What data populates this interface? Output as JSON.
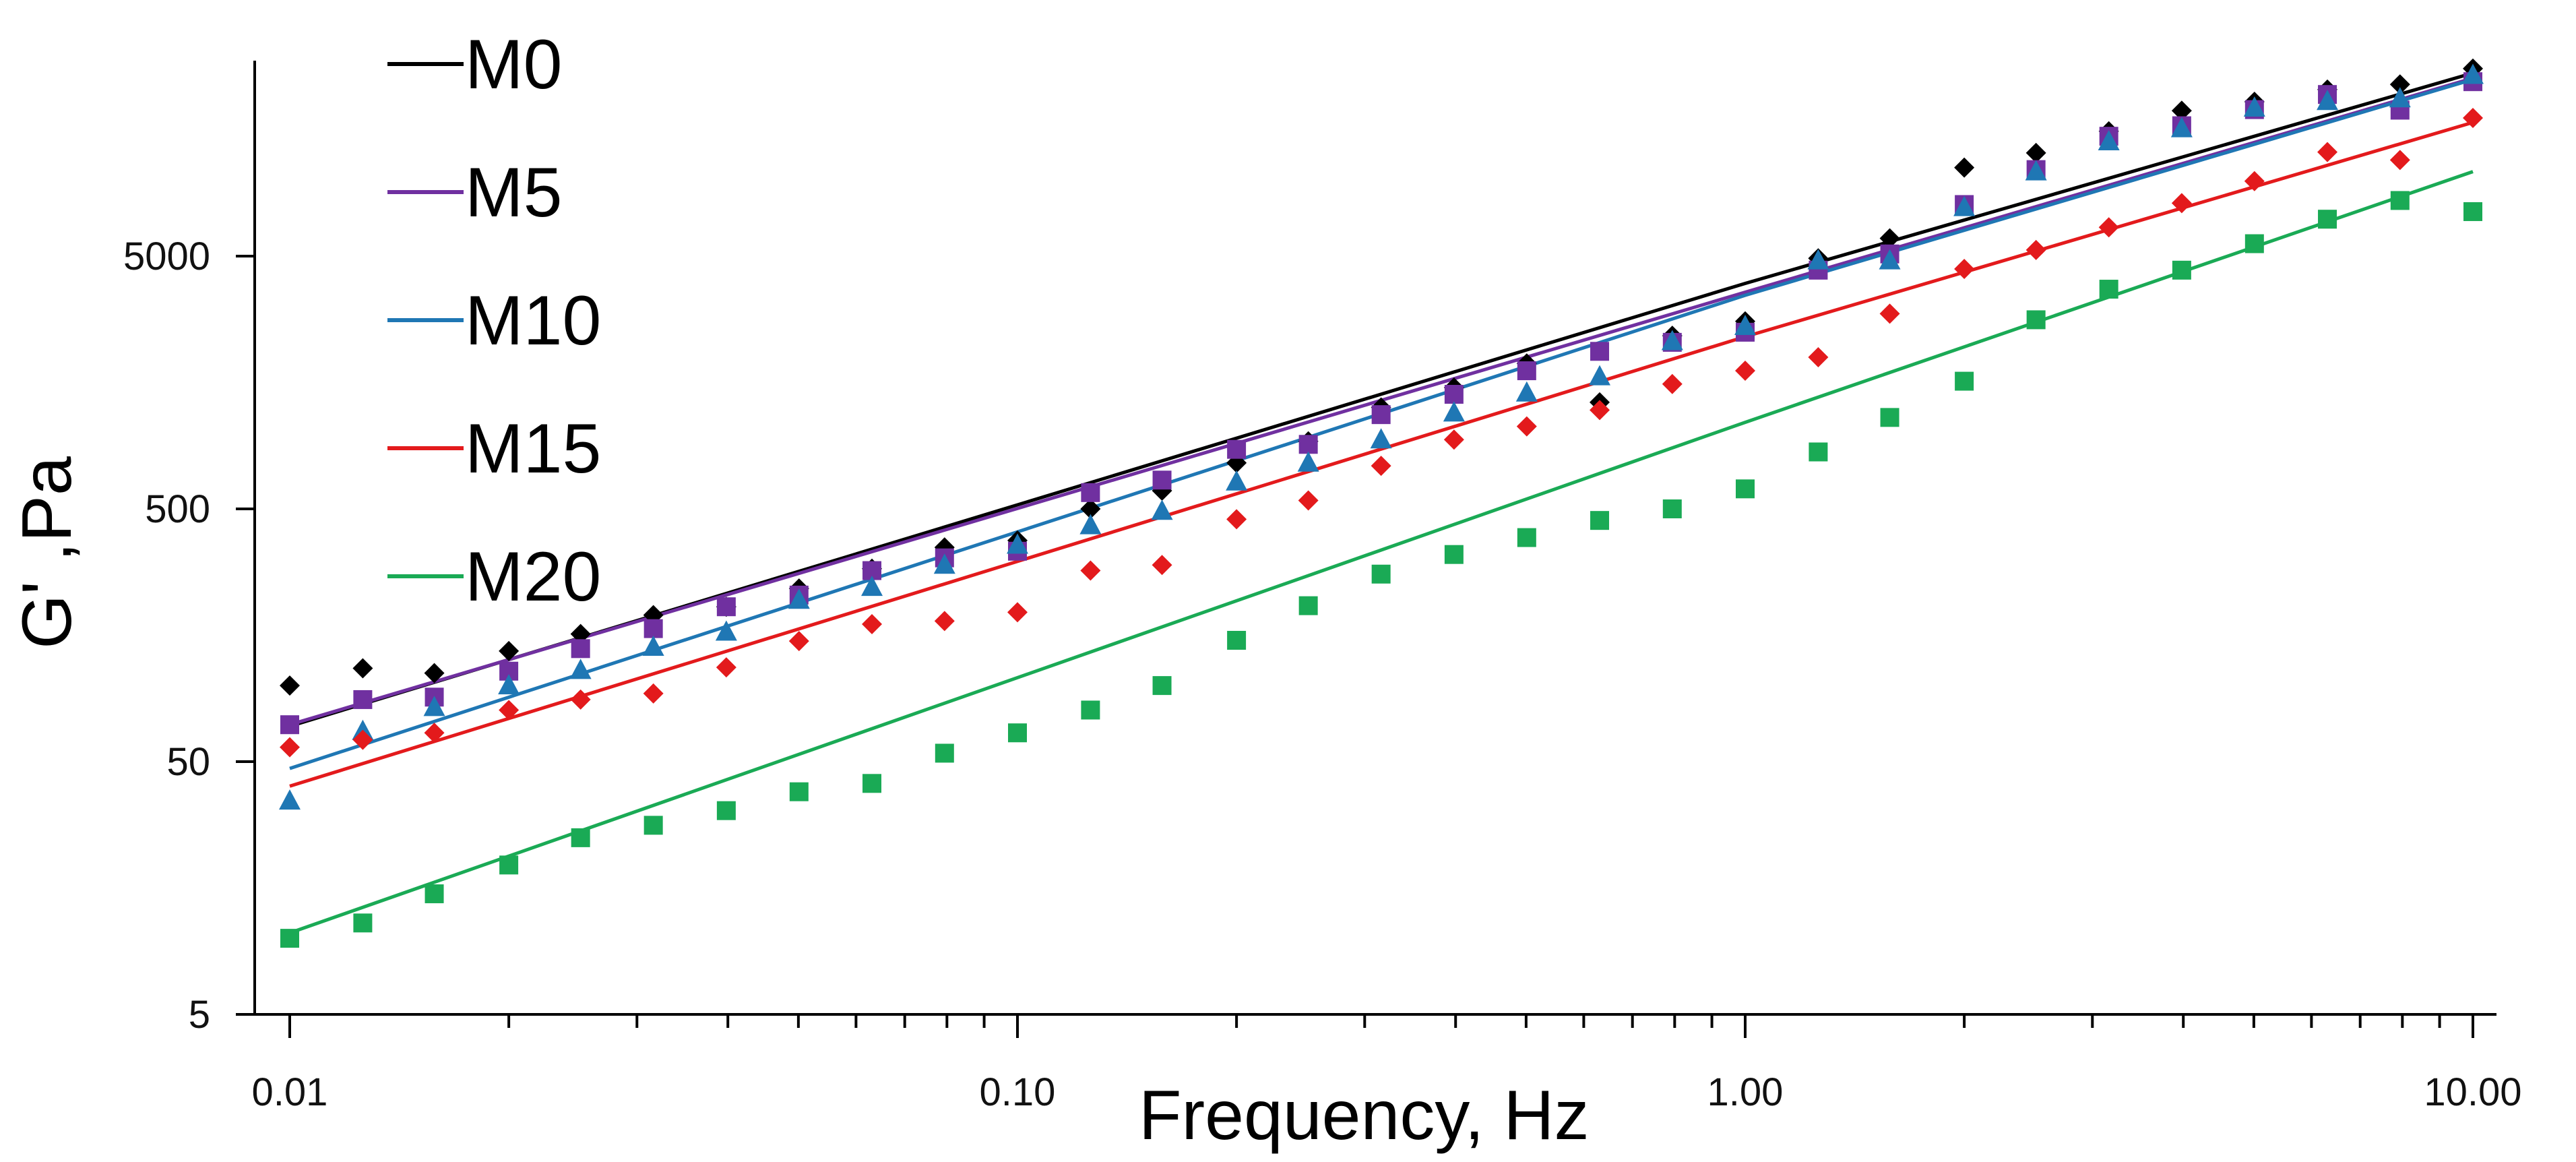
{
  "chart_data": {
    "type": "scatter",
    "title": "",
    "xlabel": "Frequency, Hz",
    "ylabel": "G' ,Pa",
    "xscale": "log",
    "yscale": "log",
    "xlim": [
      0.01,
      10
    ],
    "ylim": [
      5,
      30000
    ],
    "x_ticks": [
      0.01,
      0.1,
      1,
      10
    ],
    "x_tick_labels": [
      "0.01",
      "0.10",
      "1.00",
      "10.00"
    ],
    "y_ticks": [
      5,
      50,
      500,
      5000
    ],
    "y_tick_labels": [
      "5",
      "50",
      "500",
      "5000"
    ],
    "legend_position": "top-left",
    "x": [
      0.01,
      0.0126,
      0.0158,
      0.02,
      0.0251,
      0.0316,
      0.0398,
      0.0501,
      0.0631,
      0.0794,
      0.1,
      0.126,
      0.158,
      0.2,
      0.251,
      0.316,
      0.398,
      0.501,
      0.631,
      0.794,
      1,
      1.26,
      1.58,
      2,
      2.51,
      3.16,
      3.98,
      5.01,
      6.31,
      7.94,
      10
    ],
    "series": [
      {
        "name": "M0",
        "color": "#000000",
        "marker": "diamond",
        "values": [
          100,
          117,
          112,
          137,
          160,
          190,
          205,
          242,
          290,
          352,
          375,
          500,
          590,
          760,
          925,
          1260,
          1510,
          1880,
          1320,
          2420,
          2760,
          4900,
          5880,
          11200,
          12800,
          15600,
          18800,
          20400,
          22800,
          23900,
          27600
        ],
        "fit": [
          69,
          3900,
          26500
        ]
      },
      {
        "name": "M5",
        "color": "#7030A0",
        "marker": "square",
        "values": [
          70,
          88,
          90,
          114,
          140,
          168,
          205,
          228,
          285,
          320,
          340,
          580,
          650,
          860,
          900,
          1180,
          1420,
          1760,
          2100,
          2280,
          2500,
          4400,
          5100,
          8000,
          11000,
          14900,
          16400,
          19000,
          21800,
          18900,
          24500
        ],
        "fit": [
          70,
          3600,
          25300
        ]
      },
      {
        "name": "M10",
        "color": "#1F77B4",
        "marker": "triangle",
        "values": [
          35,
          66,
          82,
          100,
          115,
          142,
          163,
          218,
          245,
          300,
          360,
          430,
          490,
          640,
          760,
          940,
          1200,
          1440,
          1670,
          2300,
          2640,
          4800,
          4800,
          7800,
          10800,
          14200,
          16000,
          19300,
          20500,
          21000,
          26000
        ],
        "fit": [
          47,
          3500,
          25000
        ]
      },
      {
        "name": "M15",
        "color": "#E31A1C",
        "marker": "diamond",
        "values": [
          57,
          61,
          65,
          80,
          88,
          93,
          118,
          150,
          175,
          180,
          195,
          285,
          300,
          455,
          540,
          740,
          940,
          1060,
          1230,
          1560,
          1760,
          1990,
          2960,
          4450,
          5290,
          6500,
          8100,
          9900,
          12900,
          12000,
          17600
        ],
        "fit": [
          40,
          2400,
          16900
        ]
      },
      {
        "name": "M20",
        "color": "#1AAA55",
        "marker": "square",
        "values": [
          10,
          11.5,
          15,
          19.5,
          25,
          28,
          32,
          38,
          41,
          54,
          65,
          80,
          100,
          151,
          207,
          276,
          330,
          385,
          450,
          500,
          600,
          840,
          1150,
          1600,
          2800,
          3700,
          4400,
          5600,
          7000,
          8300,
          7500
        ],
        "fit": [
          10.5,
          1100,
          10800
        ]
      }
    ]
  }
}
